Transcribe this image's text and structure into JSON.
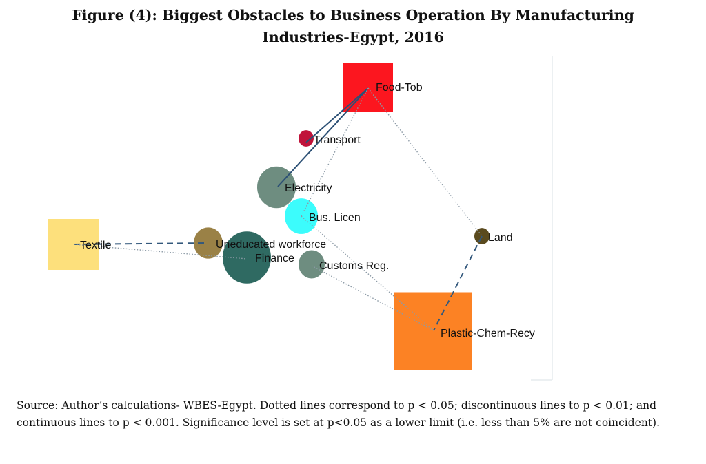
{
  "title_line1": "Figure (4): Biggest Obstacles to Business Operation By Manufacturing",
  "title_line2": "Industries-Egypt, 2016",
  "nodes": [
    {
      "id": "food",
      "label": "Food-Tob",
      "shape": "square",
      "color": "#fc161f"
    },
    {
      "id": "transport",
      "label": "Transport",
      "shape": "circle",
      "color": "#c0133a"
    },
    {
      "id": "electricity",
      "label": "Electricity",
      "shape": "circle",
      "color": "#6e8d80"
    },
    {
      "id": "buslicen",
      "label": "Bus. Licen",
      "shape": "circle",
      "color": "#3cfcfc"
    },
    {
      "id": "textile",
      "label": "Textile",
      "shape": "square",
      "color": "#fde07c"
    },
    {
      "id": "uneducated",
      "label": "Uneducated workforce",
      "shape": "circle",
      "color": "#9a8146"
    },
    {
      "id": "finance",
      "label": "Finance",
      "shape": "circle",
      "color": "#2f6a62"
    },
    {
      "id": "customs",
      "label": "Customs Reg.",
      "shape": "circle",
      "color": "#6e8d80"
    },
    {
      "id": "land",
      "label": "Land",
      "shape": "circle",
      "color": "#5a4a1e"
    },
    {
      "id": "plastic",
      "label": "Plastic-Chem-Recy",
      "shape": "square",
      "color": "#fc8224"
    }
  ],
  "edges": [
    {
      "from": "food",
      "to": "transport",
      "style": "continuous"
    },
    {
      "from": "food",
      "to": "electricity",
      "style": "continuous"
    },
    {
      "from": "food",
      "to": "buslicen",
      "style": "dotted"
    },
    {
      "from": "food",
      "to": "land",
      "style": "dotted"
    },
    {
      "from": "textile",
      "to": "uneducated",
      "style": "dashed"
    },
    {
      "from": "textile",
      "to": "finance",
      "style": "dotted"
    },
    {
      "from": "buslicen",
      "to": "plastic",
      "style": "dotted"
    },
    {
      "from": "customs",
      "to": "plastic",
      "style": "dotted"
    },
    {
      "from": "land",
      "to": "plastic",
      "style": "dashed"
    }
  ],
  "caption": "Source: Author’s calculations- WBES-Egypt. Dotted lines correspond to p < 0.05; discontinuous lines to p < 0.01; and continuous lines to p < 0.001. Significance level is set at p<0.05 as a lower limit (i.e. less than 5% are not coincident)."
}
